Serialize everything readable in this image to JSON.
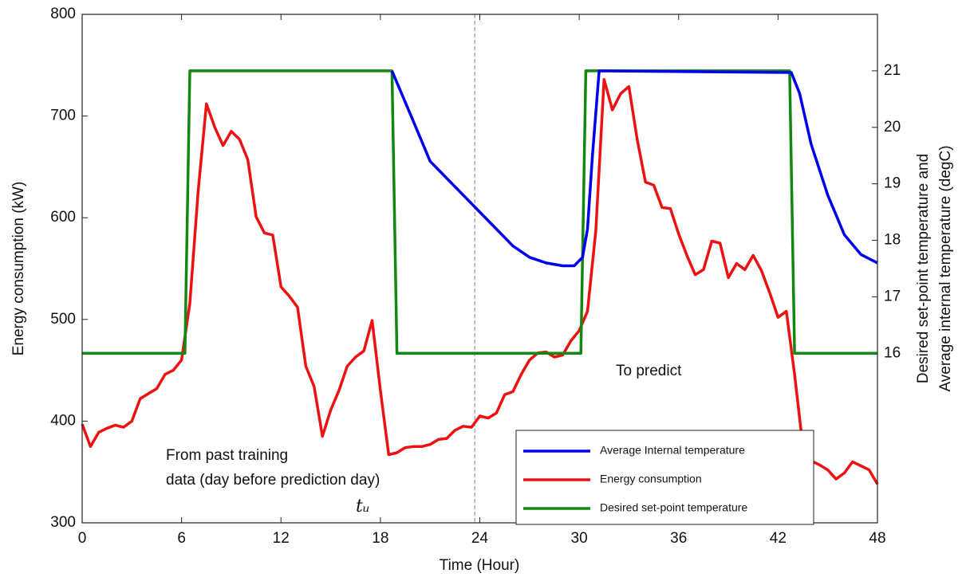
{
  "chart_data": {
    "type": "line",
    "xlabel": "Time (Hour)",
    "ylabel": "Energy consumption (kW)",
    "y2label": [
      "Desired set-point temperature and",
      "Average internal temperature (degC)"
    ],
    "xlim": [
      0,
      48
    ],
    "xticks": [
      0,
      6,
      12,
      18,
      24,
      30,
      36,
      42,
      48
    ],
    "ylim": [
      300,
      800
    ],
    "yticks": [
      300,
      400,
      500,
      600,
      700,
      800
    ],
    "y2lim": [
      13,
      22
    ],
    "y2ticks": [
      16,
      17,
      18,
      19,
      20,
      21
    ],
    "series": [
      {
        "name": "Average Internal temperature",
        "color": "#0000ee",
        "axis": "y2",
        "x": [
          18.7,
          20,
          21,
          22,
          24,
          26,
          27,
          28,
          29,
          29.7,
          30.2,
          30.5,
          30.8,
          31.2,
          42.8,
          43.3,
          44,
          45,
          46,
          47,
          48
        ],
        "values": [
          21,
          20.1,
          19.4,
          19.1,
          18.5,
          17.9,
          17.7,
          17.6,
          17.55,
          17.55,
          17.7,
          18.2,
          19.5,
          21,
          20.97,
          20.6,
          19.7,
          18.8,
          18.1,
          17.75,
          17.6
        ]
      },
      {
        "name": "Energy consumption",
        "color": "#ee1111",
        "x": [
          0,
          0.5,
          1,
          1.5,
          2,
          2.5,
          3,
          3.5,
          4,
          4.5,
          5,
          5.5,
          6,
          6.5,
          7,
          7.5,
          8,
          8.5,
          9,
          9.5,
          10,
          10.5,
          11,
          11.5,
          12,
          12.5,
          13,
          13.5,
          14,
          14.5,
          15,
          15.5,
          16,
          16.5,
          17,
          17.5,
          18,
          18.5,
          19,
          19.5,
          20,
          20.5,
          21,
          21.5,
          22,
          22.5,
          23,
          23.5,
          24,
          24.5,
          25,
          25.5,
          26,
          26.5,
          27,
          27.5,
          28,
          28.5,
          29,
          29.5,
          30,
          30.5,
          31,
          31.5,
          32,
          32.5,
          33,
          33.5,
          34,
          34.5,
          35,
          35.5,
          36,
          36.5,
          37,
          37.5,
          38,
          38.5,
          39,
          39.5,
          40,
          40.5,
          41,
          41.5,
          42,
          42.5,
          43,
          43.5,
          44,
          44.5,
          45,
          45.5,
          46,
          46.5,
          47,
          47.5,
          48
        ],
        "values": [
          397,
          375,
          389,
          393,
          396,
          394,
          400,
          422,
          427,
          432,
          446,
          450,
          460,
          516,
          626,
          712,
          689,
          671,
          685,
          677,
          657,
          601,
          585,
          583,
          532,
          523,
          512,
          454,
          434,
          385,
          411,
          430,
          454,
          463,
          469,
          499,
          430,
          367,
          369,
          374,
          375,
          375,
          377,
          382,
          383,
          391,
          395,
          394,
          405,
          403,
          408,
          426,
          429,
          446,
          460,
          467,
          468,
          463,
          465,
          479,
          489,
          508,
          587,
          736,
          706,
          722,
          729,
          677,
          635,
          632,
          610,
          609,
          584,
          563,
          544,
          549,
          577,
          575,
          541,
          555,
          549,
          563,
          548,
          526,
          502,
          508,
          446,
          375,
          361,
          357,
          352,
          343,
          349,
          360,
          356,
          352,
          338
        ]
      },
      {
        "name": "Desired set-point temperature",
        "color": "#118811",
        "axis": "y2",
        "x": [
          0,
          6.2,
          6.5,
          18.7,
          19,
          30.1,
          30.4,
          42.7,
          43,
          48
        ],
        "values": [
          16,
          16,
          21,
          21,
          16,
          16,
          21,
          21,
          16,
          16
        ]
      }
    ],
    "divider_x": 23.7,
    "annotations": {
      "past": [
        "From past training",
        "data (day before prediction day)"
      ],
      "predict": "To predict",
      "t": "tᵤ"
    }
  }
}
